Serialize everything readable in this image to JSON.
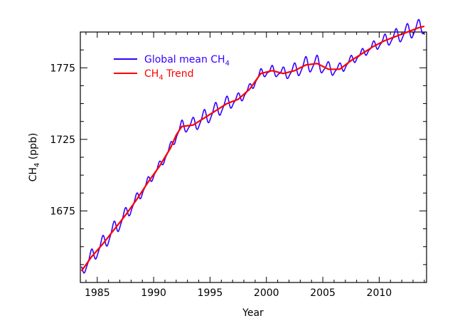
{
  "chart_data": {
    "type": "line",
    "xlabel": "Year",
    "ylabel": "CH",
    "ylabel_sub": "4",
    "ylabel_suffix": " (ppb)",
    "xlim": [
      1983.5,
      2014.2
    ],
    "ylim": [
      1625,
      1800
    ],
    "x_ticks": [
      1985,
      1990,
      1995,
      2000,
      2005,
      2010
    ],
    "y_ticks": [
      1675,
      1725,
      1775
    ],
    "grid": false,
    "legend_position": "top-left",
    "series": [
      {
        "name": "Global mean CH",
        "name_sub": "4",
        "name_suffix": "",
        "color": "#3300ff",
        "seasonal_amplitude": 4.5,
        "trend_ref": "trend",
        "source_note": "Monthly means oscillate seasonally about the trend"
      },
      {
        "name": "CH",
        "name_sub": "4",
        "name_suffix": " Trend",
        "color": "#ff0000",
        "id": "trend",
        "x": [
          1983.6,
          1984.5,
          1985.5,
          1986.5,
          1987.5,
          1988.5,
          1989.5,
          1990.5,
          1991.5,
          1992.0,
          1992.5,
          1993.5,
          1994.5,
          1995.5,
          1996.5,
          1997.5,
          1998.5,
          1999.5,
          2000.5,
          2001.5,
          2002.5,
          2003.5,
          2004.5,
          2005.5,
          2006.5,
          2007.5,
          2008.5,
          2009.5,
          2010.5,
          2011.5,
          2012.5,
          2013.5,
          2014.0
        ],
        "y": [
          1633,
          1643,
          1652,
          1662,
          1672,
          1683,
          1695,
          1706,
          1719,
          1728,
          1734,
          1735,
          1740,
          1745,
          1750,
          1753,
          1760,
          1771,
          1773,
          1771,
          1773,
          1777,
          1778,
          1774,
          1774,
          1780,
          1785,
          1790,
          1794,
          1797,
          1800,
          1803,
          1804
        ]
      }
    ]
  }
}
